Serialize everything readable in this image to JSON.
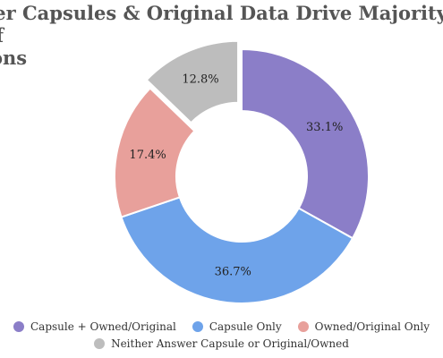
{
  "chart_data": {
    "type": "pie",
    "variant": "donut",
    "title": "ver Capsules & Original Data Drive Majority of ions",
    "title_lines": [
      "ver Capsules & Original Data Drive Majority of",
      "ions"
    ],
    "slices": [
      {
        "label": "Capsule + Owned/Original",
        "value": 33.1,
        "display": "33.1%",
        "color": "#8b7ec8",
        "exploded": false
      },
      {
        "label": "Capsule Only",
        "value": 36.7,
        "display": "36.7%",
        "color": "#6ea3ea",
        "exploded": false
      },
      {
        "label": "Owned/Original Only",
        "value": 17.4,
        "display": "17.4%",
        "color": "#e8a09b",
        "exploded": false
      },
      {
        "label": "Neither Answer Capsule or Original/Owned",
        "value": 12.8,
        "display": "12.8%",
        "color": "#bdbdbd",
        "exploded": true
      }
    ],
    "legend": {
      "position": "bottom",
      "rows": [
        [
          "Capsule + Owned/Original",
          "Capsule Only",
          "Owned/Original Only"
        ],
        [
          "Neither Answer Capsule or Original/Owned"
        ]
      ]
    },
    "grid": false
  }
}
